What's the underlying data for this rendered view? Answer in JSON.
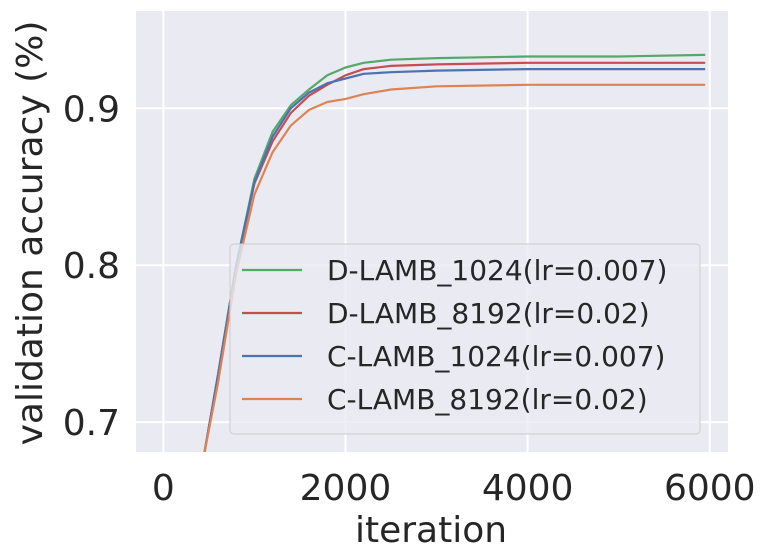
{
  "chart_data": {
    "type": "line",
    "title": "",
    "xlabel": "iteration",
    "ylabel": "validation accuracy (%)",
    "xlim": [
      -300,
      6200
    ],
    "ylim": [
      0.681,
      0.962
    ],
    "xticks": [
      0,
      2000,
      4000,
      6000
    ],
    "xtick_labels": [
      "0",
      "2000",
      "4000",
      "6000"
    ],
    "yticks": [
      0.7,
      0.8,
      0.9
    ],
    "ytick_labels": [
      "0.7",
      "0.8",
      "0.9"
    ],
    "grid": true,
    "background": "#eaeaf2",
    "grid_color": "#ffffff",
    "legend_position": "lower-right",
    "series": [
      {
        "name": "D-LAMB_1024(lr=0.007)",
        "color": "#55a868",
        "points": [
          [
            450,
            0.68
          ],
          [
            600,
            0.73
          ],
          [
            800,
            0.8
          ],
          [
            1000,
            0.855
          ],
          [
            1200,
            0.885
          ],
          [
            1400,
            0.902
          ],
          [
            1600,
            0.912
          ],
          [
            1800,
            0.921
          ],
          [
            2000,
            0.926
          ],
          [
            2200,
            0.929
          ],
          [
            2500,
            0.931
          ],
          [
            3000,
            0.932
          ],
          [
            4000,
            0.933
          ],
          [
            5000,
            0.933
          ],
          [
            5950,
            0.934
          ]
        ]
      },
      {
        "name": "D-LAMB_8192(lr=0.02)",
        "color": "#c44e52",
        "points": [
          [
            450,
            0.68
          ],
          [
            600,
            0.73
          ],
          [
            800,
            0.8
          ],
          [
            1000,
            0.852
          ],
          [
            1200,
            0.879
          ],
          [
            1400,
            0.897
          ],
          [
            1600,
            0.908
          ],
          [
            1800,
            0.915
          ],
          [
            2000,
            0.921
          ],
          [
            2200,
            0.925
          ],
          [
            2500,
            0.927
          ],
          [
            3000,
            0.928
          ],
          [
            4000,
            0.929
          ],
          [
            5000,
            0.929
          ],
          [
            5950,
            0.929
          ]
        ]
      },
      {
        "name": "C-LAMB_1024(lr=0.007)",
        "color": "#4c72b0",
        "points": [
          [
            450,
            0.68
          ],
          [
            600,
            0.73
          ],
          [
            800,
            0.8
          ],
          [
            1000,
            0.853
          ],
          [
            1200,
            0.882
          ],
          [
            1400,
            0.9
          ],
          [
            1600,
            0.91
          ],
          [
            1800,
            0.916
          ],
          [
            2000,
            0.919
          ],
          [
            2200,
            0.922
          ],
          [
            2500,
            0.923
          ],
          [
            3000,
            0.924
          ],
          [
            4000,
            0.925
          ],
          [
            5000,
            0.925
          ],
          [
            5950,
            0.925
          ]
        ]
      },
      {
        "name": "C-LAMB_8192(lr=0.02)",
        "color": "#dd8452",
        "points": [
          [
            450,
            0.68
          ],
          [
            600,
            0.725
          ],
          [
            800,
            0.795
          ],
          [
            1000,
            0.845
          ],
          [
            1200,
            0.872
          ],
          [
            1400,
            0.889
          ],
          [
            1600,
            0.899
          ],
          [
            1800,
            0.904
          ],
          [
            2000,
            0.906
          ],
          [
            2200,
            0.909
          ],
          [
            2500,
            0.912
          ],
          [
            3000,
            0.914
          ],
          [
            4000,
            0.915
          ],
          [
            5000,
            0.915
          ],
          [
            5950,
            0.915
          ]
        ]
      }
    ]
  }
}
